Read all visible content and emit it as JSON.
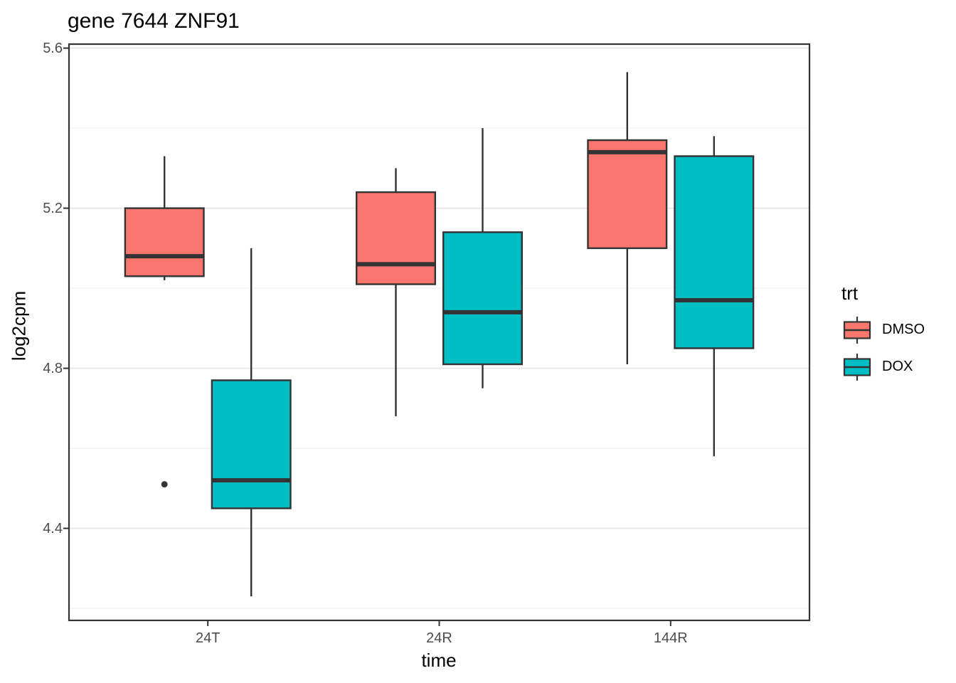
{
  "title": "gene 7644 ZNF91",
  "legend": {
    "title": "trt",
    "entries": [
      {
        "label": "DMSO",
        "color": "#F8766D"
      },
      {
        "label": "DOX",
        "color": "#00BFC4"
      }
    ]
  },
  "chart_data": {
    "type": "boxplot",
    "title": "gene 7644 ZNF91",
    "xlabel": "time",
    "ylabel": "log2cpm",
    "categories": [
      "24T",
      "24R",
      "144R"
    ],
    "ylim": [
      4.17,
      5.61
    ],
    "y_major_ticks": [
      5.6,
      5.2,
      4.8,
      4.4
    ],
    "y_minor_ticks": [
      5.4,
      5.0,
      4.6,
      4.2
    ],
    "legend_title": "trt",
    "legend_position": "right",
    "grid": true,
    "series": [
      {
        "name": "DMSO",
        "color": "#F8766D",
        "boxes": [
          {
            "category": "24T",
            "min": 5.02,
            "q1": 5.03,
            "median": 5.08,
            "q3": 5.2,
            "max": 5.33,
            "outliers": [
              4.51
            ]
          },
          {
            "category": "24R",
            "min": 4.68,
            "q1": 5.01,
            "median": 5.06,
            "q3": 5.24,
            "max": 5.3,
            "outliers": []
          },
          {
            "category": "144R",
            "min": 4.81,
            "q1": 5.1,
            "median": 5.34,
            "q3": 5.37,
            "max": 5.54,
            "outliers": []
          }
        ]
      },
      {
        "name": "DOX",
        "color": "#00BFC4",
        "boxes": [
          {
            "category": "24T",
            "min": 4.23,
            "q1": 4.45,
            "median": 4.52,
            "q3": 4.77,
            "max": 5.1,
            "outliers": []
          },
          {
            "category": "24R",
            "min": 4.75,
            "q1": 4.81,
            "median": 4.94,
            "q3": 5.14,
            "max": 5.4,
            "outliers": []
          },
          {
            "category": "144R",
            "min": 4.58,
            "q1": 4.85,
            "median": 4.97,
            "q3": 5.33,
            "max": 5.38,
            "outliers": []
          }
        ]
      }
    ],
    "style": {
      "box_border": "#333333",
      "panel_border": "#333333",
      "grid_major": "#E6E6E6",
      "grid_minor": "#F2F2F2",
      "tick_color": "#333333",
      "tick_label_color": "#4D4D4D",
      "outlier_color": "#333333",
      "panel_background": "#FFFFFF"
    }
  }
}
